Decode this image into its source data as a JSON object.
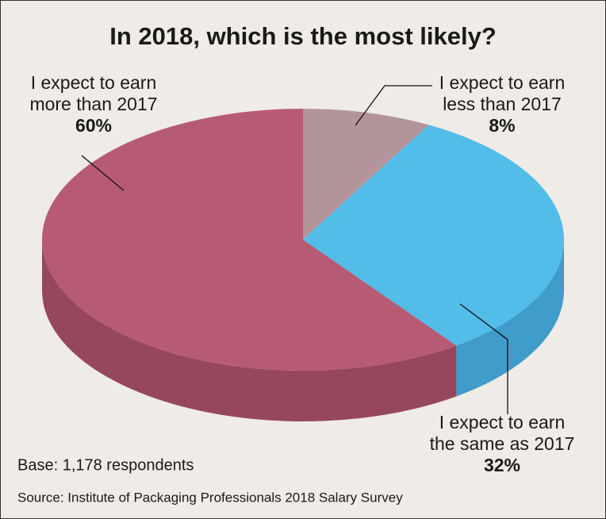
{
  "chart_data": {
    "type": "pie",
    "title": "In 2018, which is the most likely?",
    "categories": [
      [
        "I expect to earn",
        "less than 2017"
      ],
      [
        "I expect to earn",
        "the same as 2017"
      ],
      [
        "I expect to earn",
        "more than 2017"
      ]
    ],
    "values": [
      8,
      32,
      60
    ],
    "value_labels": [
      "8%",
      "32%",
      "60%"
    ],
    "colors": [
      "#b3949a",
      "#52bde9",
      "#b75a73"
    ],
    "side_colors": [
      "#957a80",
      "#3f9ccb",
      "#97475d"
    ],
    "notes": [
      "Base: 1,178 respondents",
      "Source: Institute of Packaging Professionals 2018 Salary Survey"
    ]
  }
}
